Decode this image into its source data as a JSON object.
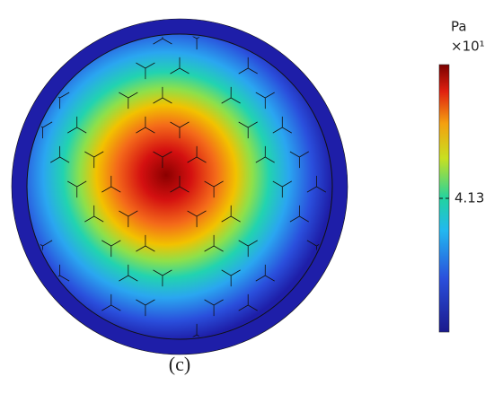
{
  "chart_data": {
    "type": "contour",
    "unit": "Pa",
    "multiplier": "×10¹",
    "colorbar": {
      "clim": [
        4.08,
        4.18
      ],
      "ticks": [
        4.13
      ]
    },
    "caption": "(c)"
  }
}
